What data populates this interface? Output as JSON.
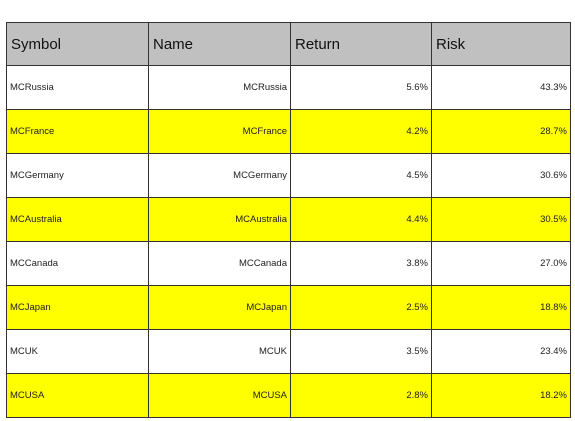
{
  "table": {
    "headers": [
      "Symbol",
      "Name",
      "Return",
      "Risk"
    ],
    "rows": [
      {
        "symbol": "MCRussia",
        "name": "MCRussia",
        "return": "5.6%",
        "risk": "43.3%"
      },
      {
        "symbol": "MCFrance",
        "name": "MCFrance",
        "return": "4.2%",
        "risk": "28.7%"
      },
      {
        "symbol": "MCGermany",
        "name": "MCGermany",
        "return": "4.5%",
        "risk": "30.6%"
      },
      {
        "symbol": "MCAustralia",
        "name": "MCAustralia",
        "return": "4.4%",
        "risk": "30.5%"
      },
      {
        "symbol": "MCCanada",
        "name": "MCCanada",
        "return": "3.8%",
        "risk": "27.0%"
      },
      {
        "symbol": "MCJapan",
        "name": "MCJapan",
        "return": "2.5%",
        "risk": "18.8%"
      },
      {
        "symbol": "MCUK",
        "name": "MCUK",
        "return": "3.5%",
        "risk": "23.4%"
      },
      {
        "symbol": "MCUSA",
        "name": "MCUSA",
        "return": "2.8%",
        "risk": "18.2%"
      }
    ]
  },
  "colors": {
    "header_bg": "#c0c0c0",
    "row_alt_bg": "#ffff00",
    "row_bg": "#ffffff",
    "border": "#333333"
  }
}
